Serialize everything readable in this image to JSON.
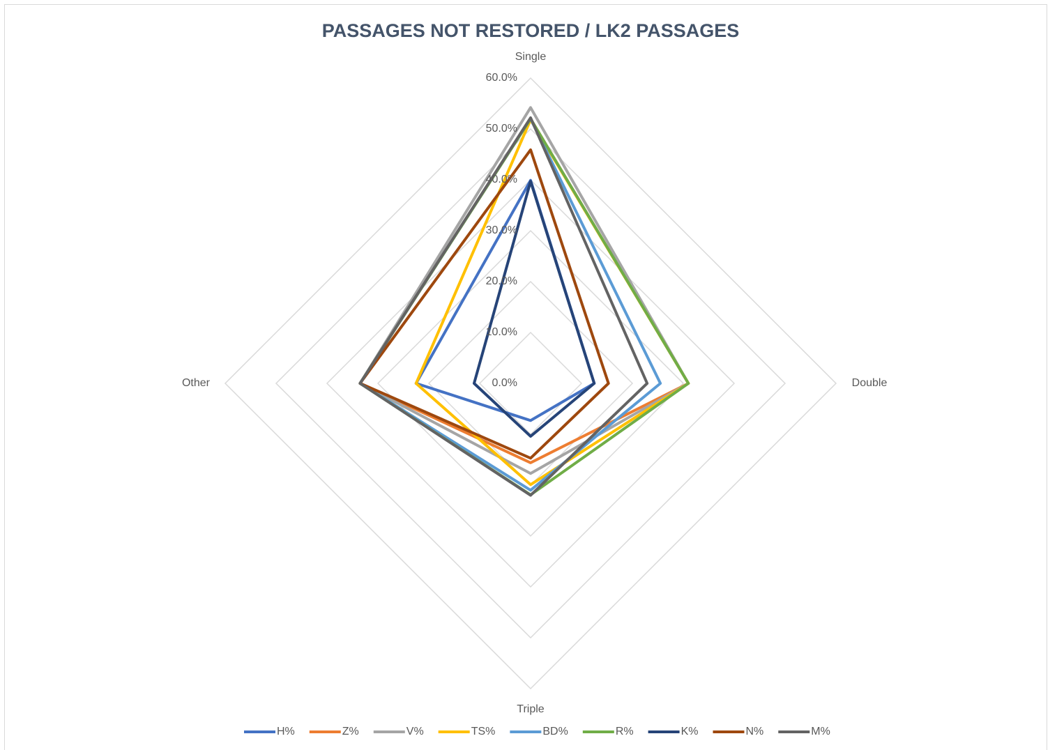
{
  "chart_data": {
    "type": "radar",
    "title": "PASSAGES NOT RESTORED / LK2 PASSAGES",
    "categories": [
      "Single",
      "Double",
      "Triple",
      "Other"
    ],
    "rlim": [
      0,
      60
    ],
    "rticks": [
      {
        "value": 0,
        "label": "0.0%"
      },
      {
        "value": 10,
        "label": "10.0%"
      },
      {
        "value": 20,
        "label": "20.0%"
      },
      {
        "value": 30,
        "label": "30.0%"
      },
      {
        "value": 40,
        "label": "40.0%"
      },
      {
        "value": 50,
        "label": "50.0%"
      },
      {
        "value": 60,
        "label": "60.0%"
      }
    ],
    "grid": true,
    "legend": "bottom",
    "series": [
      {
        "name": "H%",
        "color": "#4472c4",
        "values": [
          39.9,
          12.5,
          7.3,
          22.5
        ]
      },
      {
        "name": "Z%",
        "color": "#ed7d31",
        "values": [
          52,
          31,
          15.6,
          33.5
        ]
      },
      {
        "name": "V%",
        "color": "#a5a5a5",
        "values": [
          54.2,
          31,
          17.7,
          33.5
        ]
      },
      {
        "name": "TS%",
        "color": "#ffc000",
        "values": [
          51.8,
          31,
          19.9,
          22.5
        ]
      },
      {
        "name": "BD%",
        "color": "#5b9bd5",
        "values": [
          52,
          25.5,
          21,
          33.5
        ]
      },
      {
        "name": "R%",
        "color": "#70ad47",
        "values": [
          52,
          31,
          21.9,
          33.5
        ]
      },
      {
        "name": "K%",
        "color": "#264478",
        "values": [
          39.7,
          12.5,
          10.4,
          11.1
        ]
      },
      {
        "name": "N%",
        "color": "#9e480e",
        "values": [
          45.9,
          15.3,
          14.7,
          33.5
        ]
      },
      {
        "name": "M%",
        "color": "#636363",
        "values": [
          52.2,
          22.9,
          22,
          33.5
        ]
      }
    ]
  }
}
